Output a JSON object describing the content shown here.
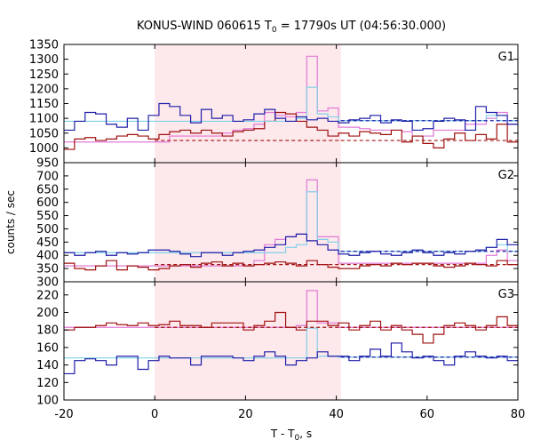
{
  "chart_data": {
    "type": "line",
    "title": "KONUS-WIND 060615 T",
    "title_sub": "0",
    "title_rest": " = 17790s UT (04:56:30.000)",
    "xlabel": "T - T",
    "xlabel_sub": "0",
    "xlabel_rest": ", s",
    "ylabel": "counts / sec",
    "xlim": [
      -20,
      80
    ],
    "xticks": [
      -20,
      0,
      20,
      40,
      60,
      80
    ],
    "highlight_interval": [
      0,
      41
    ],
    "colors": {
      "highlight": "#fde8ec",
      "blue": "#1f1fa8",
      "red": "#a01010",
      "cyan": "#7fd0e8",
      "pink": "#e27ad6"
    },
    "panels": [
      {
        "label": "G1",
        "ylim": [
          950,
          1350
        ],
        "yticks": [
          950,
          1000,
          1050,
          1100,
          1150,
          1200,
          1250,
          1300,
          1350
        ],
        "blue_background": 1092,
        "red_background": 1025,
        "series": [
          {
            "name": "G1 blue",
            "color": "blue",
            "values": [
              1060,
              1090,
              1120,
              1115,
              1080,
              1070,
              1100,
              1060,
              1110,
              1150,
              1140,
              1110,
              1085,
              1130,
              1100,
              1110,
              1090,
              1095,
              1115,
              1130,
              1100,
              1090,
              1105,
              1095,
              1100,
              1090,
              1085,
              1095,
              1100,
              1110,
              1085,
              1095,
              1090,
              1060,
              1065,
              1090,
              1100,
              1095,
              1060,
              1140,
              1120,
              1110,
              1080
            ]
          },
          {
            "name": "G1 red",
            "color": "red",
            "values": [
              995,
              1030,
              1035,
              1025,
              1030,
              1040,
              1045,
              1040,
              1030,
              1045,
              1055,
              1060,
              1050,
              1060,
              1050,
              1040,
              1055,
              1060,
              1065,
              1090,
              1120,
              1115,
              1090,
              1070,
              1060,
              1040,
              1050,
              1040,
              1055,
              1050,
              1045,
              1060,
              1020,
              1040,
              1015,
              1000,
              1030,
              1050,
              1025,
              1045,
              1030,
              1080,
              1020
            ]
          },
          {
            "name": "G1 cyan",
            "color": "cyan",
            "values": [
              1090,
              1090,
              1090,
              1090,
              1090,
              1090,
              1090,
              1090,
              1090,
              1090,
              1090,
              1090,
              1090,
              1090,
              1090,
              1090,
              1090,
              1090,
              1090,
              1090,
              1090,
              1090,
              1100,
              1205,
              1115,
              1105,
              1092,
              1092,
              1092,
              1092,
              1092,
              1092,
              1092,
              1092,
              1092,
              1092,
              1092,
              1092,
              1092,
              1092,
              1110,
              1092,
              1092
            ]
          },
          {
            "name": "G1 pink",
            "color": "pink",
            "values": [
              1020,
              1020,
              1020,
              1020,
              1020,
              1020,
              1020,
              1020,
              1020,
              1020,
              1040,
              1040,
              1040,
              1040,
              1040,
              1050,
              1060,
              1065,
              1080,
              1120,
              1110,
              1105,
              1120,
              1310,
              1125,
              1135,
              1070,
              1070,
              1065,
              1060,
              1060,
              1060,
              1055,
              1040,
              1040,
              1060,
              1060,
              1060,
              1080,
              1080,
              1100,
              1120,
              1080
            ]
          }
        ]
      },
      {
        "label": "G2",
        "ylim": [
          300,
          750
        ],
        "yticks": [
          300,
          350,
          400,
          450,
          500,
          550,
          600,
          650,
          700
        ],
        "blue_background": 415,
        "red_background": 365,
        "series": [
          {
            "name": "G2 blue",
            "color": "blue",
            "values": [
              410,
              400,
              410,
              415,
              400,
              410,
              405,
              410,
              420,
              420,
              415,
              405,
              395,
              410,
              410,
              400,
              410,
              415,
              420,
              430,
              440,
              470,
              480,
              455,
              440,
              420,
              405,
              400,
              410,
              415,
              405,
              400,
              410,
              420,
              410,
              400,
              410,
              405,
              415,
              420,
              430,
              460,
              440
            ]
          },
          {
            "name": "G2 red",
            "color": "red",
            "values": [
              370,
              350,
              345,
              360,
              380,
              345,
              360,
              355,
              345,
              350,
              360,
              365,
              355,
              370,
              375,
              360,
              370,
              360,
              365,
              370,
              375,
              370,
              360,
              380,
              365,
              355,
              350,
              350,
              360,
              365,
              360,
              370,
              365,
              370,
              370,
              360,
              355,
              360,
              370,
              365,
              360,
              380,
              365
            ]
          },
          {
            "name": "G2 cyan",
            "color": "cyan",
            "values": [
              410,
              410,
              410,
              410,
              410,
              410,
              410,
              410,
              410,
              410,
              410,
              410,
              410,
              410,
              410,
              410,
              410,
              410,
              410,
              410,
              410,
              430,
              440,
              640,
              460,
              450,
              415,
              415,
              415,
              415,
              415,
              415,
              415,
              415,
              415,
              415,
              415,
              415,
              415,
              415,
              430,
              440,
              415
            ]
          },
          {
            "name": "G2 pink",
            "color": "pink",
            "values": [
              360,
              360,
              360,
              360,
              360,
              360,
              360,
              360,
              360,
              360,
              360,
              360,
              360,
              360,
              360,
              360,
              360,
              360,
              380,
              440,
              460,
              470,
              480,
              685,
              470,
              470,
              370,
              370,
              370,
              370,
              370,
              370,
              370,
              370,
              370,
              370,
              370,
              370,
              370,
              370,
              400,
              420,
              380
            ]
          }
        ]
      },
      {
        "label": "G3",
        "ylim": [
          100,
          235
        ],
        "yticks": [
          100,
          120,
          140,
          160,
          180,
          200,
          220
        ],
        "blue_background": 149,
        "red_background": 183,
        "series": [
          {
            "name": "G3 blue",
            "color": "blue",
            "values": [
              130,
              145,
              147,
              145,
              140,
              150,
              150,
              135,
              145,
              150,
              148,
              148,
              140,
              150,
              150,
              150,
              148,
              145,
              150,
              155,
              150,
              140,
              145,
              148,
              155,
              150,
              150,
              145,
              150,
              158,
              150,
              165,
              155,
              148,
              150,
              145,
              140,
              150,
              155,
              150,
              148,
              150,
              145
            ]
          },
          {
            "name": "G3 red",
            "color": "red",
            "values": [
              180,
              183,
              183,
              185,
              188,
              186,
              185,
              188,
              185,
              186,
              190,
              185,
              185,
              183,
              188,
              188,
              188,
              180,
              185,
              190,
              200,
              183,
              180,
              190,
              190,
              185,
              188,
              180,
              185,
              190,
              180,
              185,
              180,
              175,
              165,
              175,
              185,
              188,
              185,
              180,
              185,
              195,
              185
            ]
          },
          {
            "name": "G3 cyan",
            "color": "cyan",
            "values": [
              148,
              148,
              148,
              148,
              148,
              148,
              148,
              148,
              148,
              148,
              148,
              148,
              148,
              148,
              148,
              148,
              148,
              148,
              148,
              148,
              148,
              148,
              148,
              182,
              150,
              150,
              149,
              149,
              149,
              149,
              149,
              149,
              149,
              149,
              149,
              149,
              149,
              149,
              149,
              149,
              149,
              149,
              149
            ]
          },
          {
            "name": "G3 pink",
            "color": "pink",
            "values": [
              183,
              183,
              183,
              183,
              183,
              183,
              183,
              183,
              183,
              183,
              183,
              183,
              183,
              183,
              183,
              183,
              183,
              183,
              183,
              183,
              183,
              183,
              185,
              225,
              188,
              188,
              183,
              183,
              183,
              183,
              183,
              183,
              183,
              183,
              183,
              183,
              183,
              183,
              183,
              183,
              183,
              183,
              183
            ]
          }
        ]
      }
    ]
  }
}
